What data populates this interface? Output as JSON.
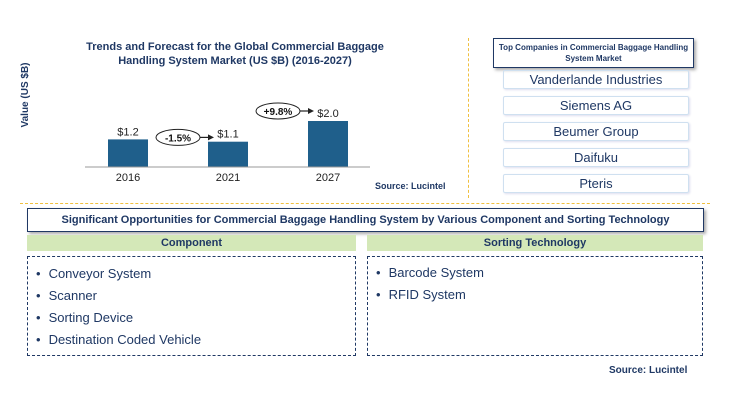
{
  "chart": {
    "title_line1": "Trends and Forecast for the Global Commercial Baggage",
    "title_line2": "Handling System Market (US $B) (2016-2027)",
    "ylabel": "Value (US $B)",
    "source": "Source: Lucintel",
    "growth_labels": [
      "-1.5%",
      "+9.8%"
    ]
  },
  "chart_data": {
    "type": "bar",
    "categories": [
      "2016",
      "2021",
      "2027"
    ],
    "values": [
      1.2,
      1.1,
      2.0
    ],
    "value_labels": [
      "$1.2",
      "$1.1",
      "$2.0"
    ],
    "ylabel": "Value (US $B)",
    "ylim": [
      0,
      2.0
    ],
    "bar_color": "#1f5f8b"
  },
  "companies": {
    "title": "Top Companies in Commercial Baggage Handling System Market",
    "items": [
      "Vanderlande Industries",
      "Siemens AG",
      "Beumer Group",
      "Daifuku",
      "Pteris"
    ]
  },
  "opportunities": {
    "title": "Significant Opportunities for Commercial Baggage Handling System by Various Component and Sorting Technology",
    "component_head": "Component",
    "component_items": [
      "Conveyor System",
      "Scanner",
      "Sorting Device",
      "Destination Coded Vehicle"
    ],
    "sorting_head": "Sorting Technology",
    "sorting_items": [
      "Barcode System",
      "RFID System"
    ],
    "source": "Source: Lucintel"
  }
}
